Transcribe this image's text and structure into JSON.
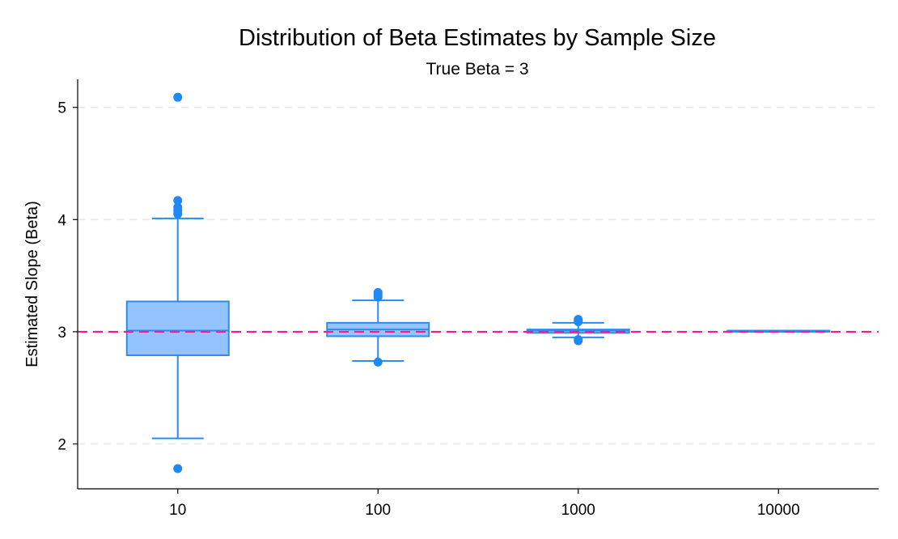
{
  "chart_data": {
    "type": "box",
    "title": "Distribution of Beta Estimates by Sample Size",
    "subtitle": "True Beta = 3",
    "xlabel": "",
    "ylabel": "Estimated Slope (Beta)",
    "ylim": [
      1.6,
      5.25
    ],
    "yticks": [
      2,
      3,
      4,
      5
    ],
    "grid": true,
    "reference_line": {
      "y": 3,
      "style": "dashed",
      "color": "#ff1a8c"
    },
    "categories": [
      "10",
      "100",
      "1000",
      "10000"
    ],
    "boxes": [
      {
        "category": "10",
        "whisker_low": 2.05,
        "q1": 2.79,
        "median": 3.01,
        "q3": 3.27,
        "whisker_high": 4.01,
        "outliers": [
          1.78,
          4.05,
          4.08,
          4.11,
          4.17,
          5.09
        ]
      },
      {
        "category": "100",
        "whisker_low": 2.74,
        "q1": 2.96,
        "median": 3.02,
        "q3": 3.08,
        "whisker_high": 3.28,
        "outliers": [
          2.73,
          3.31,
          3.33,
          3.35
        ]
      },
      {
        "category": "1000",
        "whisker_low": 2.95,
        "q1": 2.99,
        "median": 3.01,
        "q3": 3.02,
        "whisker_high": 3.08,
        "outliers": [
          2.92,
          2.93,
          3.09,
          3.1,
          3.11
        ]
      },
      {
        "category": "10000",
        "whisker_low": 3.0,
        "q1": 3.0,
        "median": 3.005,
        "q3": 3.01,
        "whisker_high": 3.01,
        "outliers": []
      }
    ],
    "colors": {
      "box_fill": "#94c4ff",
      "box_stroke": "#2b8cee",
      "outlier": "#1e88f5",
      "grid": "#e6e6e6",
      "axis": "#000000"
    }
  }
}
